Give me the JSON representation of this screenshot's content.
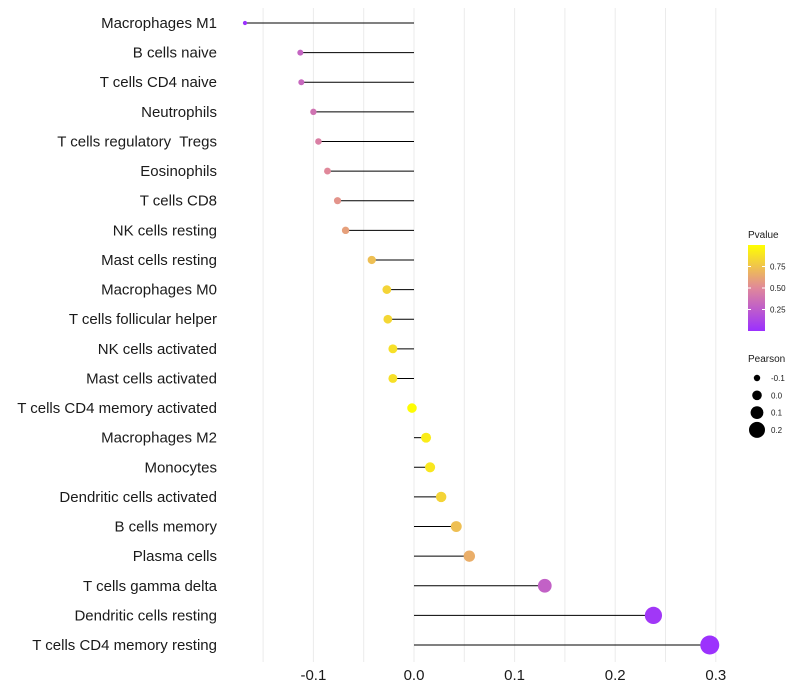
{
  "chart_data": {
    "type": "lollipop",
    "title": "",
    "xlabel": "",
    "ylabel": "",
    "xlim": [
      -0.2,
      0.3
    ],
    "x_ticks": [
      -0.1,
      0.0,
      0.1,
      0.2,
      0.3
    ],
    "x_tick_labels": [
      "-0.1",
      "0.0",
      "0.1",
      "0.2",
      "0.3"
    ],
    "grid": true,
    "points": [
      {
        "label": "Macrophages M1",
        "value": -0.168,
        "pvalue": 0.01
      },
      {
        "label": "B cells naive",
        "value": -0.113,
        "pvalue": 0.3
      },
      {
        "label": "T cells CD4 naive",
        "value": -0.112,
        "pvalue": 0.32
      },
      {
        "label": "Neutrophils",
        "value": -0.1,
        "pvalue": 0.38
      },
      {
        "label": "T cells regulatory  Tregs",
        "value": -0.095,
        "pvalue": 0.45
      },
      {
        "label": "Eosinophils",
        "value": -0.086,
        "pvalue": 0.5
      },
      {
        "label": "T cells CD8",
        "value": -0.076,
        "pvalue": 0.55
      },
      {
        "label": "NK cells resting",
        "value": -0.068,
        "pvalue": 0.6
      },
      {
        "label": "Mast cells resting",
        "value": -0.042,
        "pvalue": 0.73
      },
      {
        "label": "Macrophages M0",
        "value": -0.027,
        "pvalue": 0.82
      },
      {
        "label": "T cells follicular helper",
        "value": -0.026,
        "pvalue": 0.83
      },
      {
        "label": "NK cells activated",
        "value": -0.021,
        "pvalue": 0.87
      },
      {
        "label": "Mast cells activated",
        "value": -0.021,
        "pvalue": 0.87
      },
      {
        "label": "T cells CD4 memory activated",
        "value": -0.002,
        "pvalue": 0.99
      },
      {
        "label": "Macrophages M2",
        "value": 0.012,
        "pvalue": 0.92
      },
      {
        "label": "Monocytes",
        "value": 0.016,
        "pvalue": 0.9
      },
      {
        "label": "Dendritic cells activated",
        "value": 0.027,
        "pvalue": 0.82
      },
      {
        "label": "B cells memory",
        "value": 0.042,
        "pvalue": 0.73
      },
      {
        "label": "Plasma cells",
        "value": 0.055,
        "pvalue": 0.66
      },
      {
        "label": "T cells gamma delta",
        "value": 0.13,
        "pvalue": 0.28
      },
      {
        "label": "Dendritic cells resting",
        "value": 0.238,
        "pvalue": 0.04
      },
      {
        "label": "T cells CD4 memory resting",
        "value": 0.294,
        "pvalue": 0.01
      }
    ],
    "legend_color": {
      "title": "Pvalue",
      "ticks": [
        0.25,
        0.5,
        0.75
      ],
      "tick_labels": [
        "0.25",
        "0.50",
        "0.75"
      ],
      "range": [
        0.0,
        1.0
      ],
      "colors": {
        "low": "#9b30ff",
        "mid": "#e0889a",
        "high": "#ffff00"
      },
      "position": "right"
    },
    "legend_size": {
      "title": "Pearson",
      "values": [
        -0.1,
        0.0,
        0.1,
        0.2
      ],
      "labels": [
        "-0.1",
        "0.0",
        "0.1",
        "0.2"
      ],
      "position": "right"
    }
  }
}
